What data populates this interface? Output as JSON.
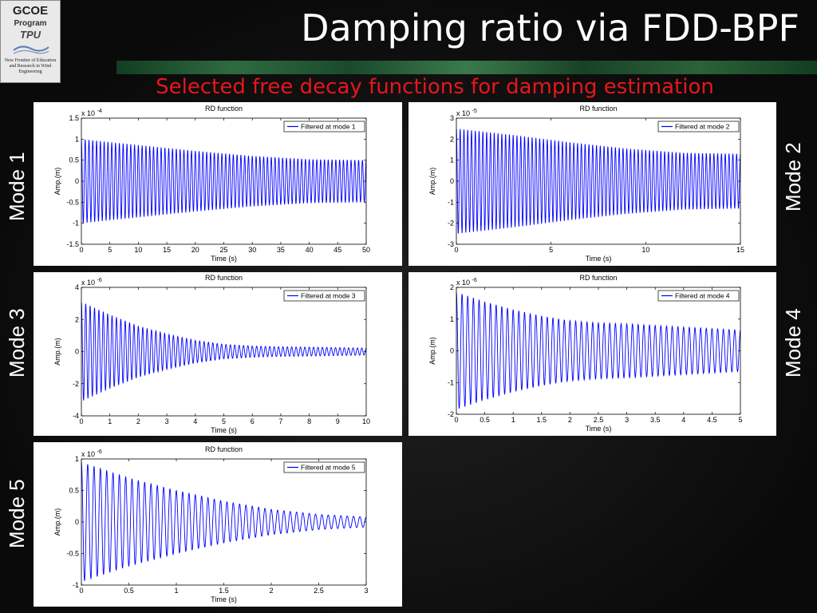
{
  "slide": {
    "title": "Damping ratio via FDD-BPF",
    "subtitle": "Selected free decay functions for damping estimation",
    "logo": {
      "line1": "GCOE",
      "line2": "Program",
      "line3": "TPU",
      "line4": "New Frontier of Education and Research in Wind Engineering"
    },
    "mode_labels": [
      "Mode 1",
      "Mode 2",
      "Mode 3",
      "Mode 4",
      "Mode 5"
    ]
  },
  "chart_data": [
    {
      "type": "line",
      "title": "RD function",
      "xlabel": "Time (s)",
      "ylabel": "Amp.(m)",
      "y_exponent": "x 10-4",
      "exp_power": "-4",
      "xlim": [
        0,
        50
      ],
      "ylim": [
        -1.5,
        1.5
      ],
      "xticks": [
        0,
        5,
        10,
        15,
        20,
        25,
        30,
        35,
        40,
        45,
        50
      ],
      "yticks": [
        -1.5,
        -1,
        -0.5,
        0,
        0.5,
        1,
        1.5
      ],
      "ytick_labels": [
        "-1.5",
        "-1",
        "-0.5",
        "0",
        "0.5",
        "1",
        "1.5"
      ],
      "legend": "top-right",
      "grid": false,
      "series": [
        {
          "name": "Filtered at mode 1",
          "color": "#0000ff",
          "signal": {
            "amplitude": 1.0,
            "frequency": 1.5,
            "cycles": 75,
            "decay_envelope": [
              [
                0,
                1.0
              ],
              [
                10,
                0.86
              ],
              [
                20,
                0.72
              ],
              [
                30,
                0.6
              ],
              [
                40,
                0.52
              ],
              [
                50,
                0.5
              ]
            ]
          }
        }
      ]
    },
    {
      "type": "line",
      "title": "RD function",
      "xlabel": "Time (s)",
      "ylabel": "Amp.(m)",
      "y_exponent": "x 10-5",
      "exp_power": "-5",
      "xlim": [
        0,
        15
      ],
      "ylim": [
        -3,
        3
      ],
      "xticks": [
        0,
        5,
        10,
        15
      ],
      "yticks": [
        -3,
        -2,
        -1,
        0,
        1,
        2,
        3
      ],
      "ytick_labels": [
        "-3",
        "-2",
        "-1",
        "0",
        "1",
        "2",
        "3"
      ],
      "legend": "top-right",
      "grid": false,
      "series": [
        {
          "name": "Filtered at mode 2",
          "color": "#0000ff",
          "signal": {
            "amplitude": 2.5,
            "frequency": 5.0,
            "cycles": 75,
            "decay_envelope": [
              [
                0,
                2.5
              ],
              [
                3,
                2.2
              ],
              [
                6,
                1.85
              ],
              [
                9,
                1.55
              ],
              [
                12,
                1.35
              ],
              [
                15,
                1.3
              ]
            ]
          }
        }
      ]
    },
    {
      "type": "line",
      "title": "RD function",
      "xlabel": "Time (s)",
      "ylabel": "Amp.(m)",
      "y_exponent": "x 10-6",
      "exp_power": "-6",
      "xlim": [
        0,
        10
      ],
      "ylim": [
        -4,
        4
      ],
      "xticks": [
        0,
        1,
        2,
        3,
        4,
        5,
        6,
        7,
        8,
        9,
        10
      ],
      "yticks": [
        -4,
        -2,
        0,
        2,
        4
      ],
      "ytick_labels": [
        "-4",
        "-2",
        "0",
        "2",
        "4"
      ],
      "legend": "top-right",
      "grid": false,
      "series": [
        {
          "name": "Filtered at mode 3",
          "color": "#0000ff",
          "signal": {
            "amplitude": 3.0,
            "frequency": 6.5,
            "cycles": 65,
            "decay_envelope": [
              [
                0,
                3.1
              ],
              [
                1,
                2.3
              ],
              [
                2,
                1.6
              ],
              [
                3,
                1.1
              ],
              [
                4,
                0.7
              ],
              [
                5,
                0.45
              ],
              [
                6,
                0.35
              ],
              [
                7,
                0.3
              ],
              [
                8,
                0.28
              ],
              [
                9,
                0.25
              ],
              [
                10,
                0.22
              ]
            ]
          }
        }
      ]
    },
    {
      "type": "line",
      "title": "RD function",
      "xlabel": "Time (s)",
      "ylabel": "Amp.(m)",
      "y_exponent": "x 10-6",
      "exp_power": "-6",
      "xlim": [
        0,
        5
      ],
      "ylim": [
        -2,
        2
      ],
      "xticks": [
        0,
        0.5,
        1,
        1.5,
        2,
        2.5,
        3,
        3.5,
        4,
        4.5,
        5
      ],
      "yticks": [
        -2,
        -1,
        0,
        1,
        2
      ],
      "ytick_labels": [
        "-2",
        "-1",
        "0",
        "1",
        "2"
      ],
      "legend": "top-right",
      "grid": false,
      "series": [
        {
          "name": "Filtered at mode 4",
          "color": "#0000ff",
          "signal": {
            "amplitude": 1.8,
            "frequency": 10.0,
            "cycles": 50,
            "decay_envelope": [
              [
                0,
                1.85
              ],
              [
                0.5,
                1.55
              ],
              [
                1,
                1.3
              ],
              [
                1.5,
                1.1
              ],
              [
                2,
                0.95
              ],
              [
                2.5,
                0.88
              ],
              [
                3,
                0.85
              ],
              [
                4,
                0.75
              ],
              [
                5,
                0.65
              ]
            ]
          }
        }
      ]
    },
    {
      "type": "line",
      "title": "RD function",
      "xlabel": "Time (s)",
      "ylabel": "Amp.(m)",
      "y_exponent": "x 10-6",
      "exp_power": "-6",
      "xlim": [
        0,
        3
      ],
      "ylim": [
        -1,
        1
      ],
      "xticks": [
        0,
        0.5,
        1,
        1.5,
        2,
        2.5,
        3
      ],
      "yticks": [
        -1,
        -0.5,
        0,
        0.5,
        1
      ],
      "ytick_labels": [
        "-1",
        "-0.5",
        "0",
        "0.5",
        "1"
      ],
      "legend": "top-right",
      "grid": false,
      "series": [
        {
          "name": "Filtered at mode 5",
          "color": "#0000ff",
          "signal": {
            "amplitude": 0.95,
            "frequency": 15.0,
            "cycles": 45,
            "decay_envelope": [
              [
                0,
                0.95
              ],
              [
                0.5,
                0.7
              ],
              [
                1,
                0.5
              ],
              [
                1.5,
                0.33
              ],
              [
                2,
                0.2
              ],
              [
                2.5,
                0.12
              ],
              [
                3,
                0.08
              ]
            ]
          }
        }
      ]
    }
  ]
}
